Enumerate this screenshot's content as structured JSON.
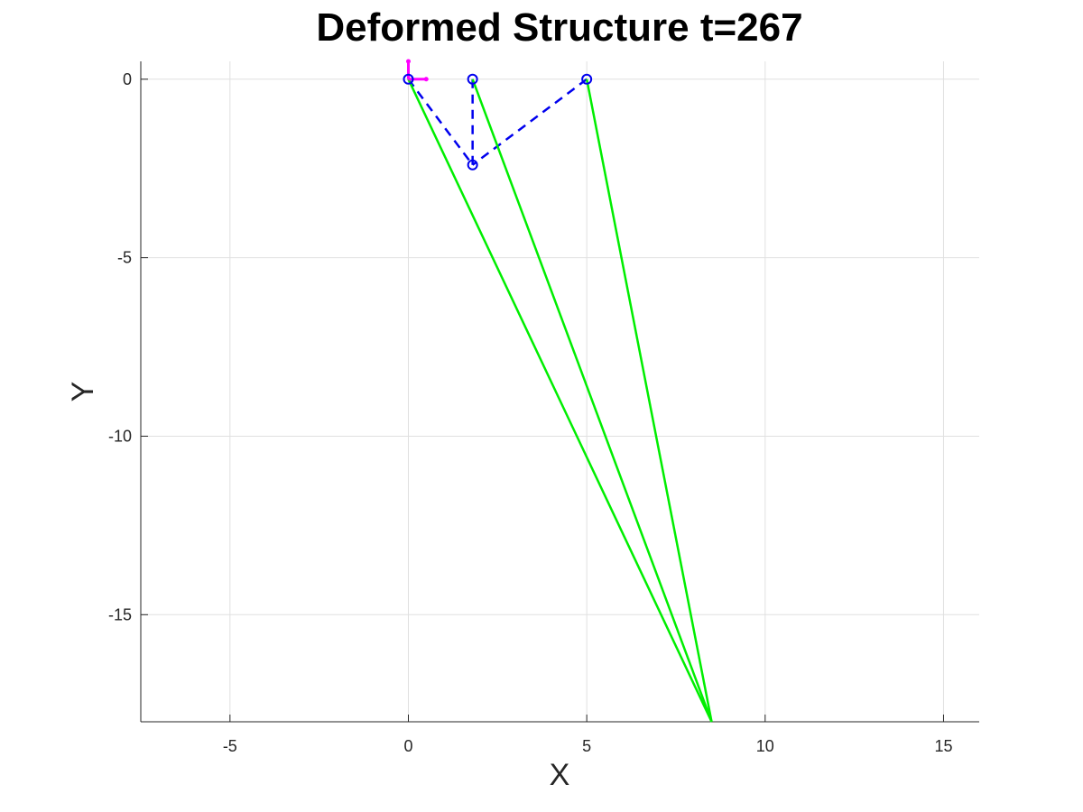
{
  "chart_data": {
    "type": "line",
    "title": "Deformed Structure t=267",
    "xlabel": "X",
    "ylabel": "Y",
    "xlim": [
      -7.5,
      16
    ],
    "ylim": [
      -18,
      0.5
    ],
    "xticks": [
      -5,
      0,
      5,
      10,
      15
    ],
    "yticks": [
      0,
      -5,
      -10,
      -15
    ],
    "xtick_labels": [
      "-5",
      "0",
      "5",
      "10",
      "15"
    ],
    "ytick_labels": [
      "0",
      "-5",
      "-10",
      "-15"
    ],
    "grid": true,
    "nodes": [
      {
        "x": 0,
        "y": 0
      },
      {
        "x": 1.8,
        "y": 0
      },
      {
        "x": 5,
        "y": 0
      },
      {
        "x": 1.8,
        "y": -2.4
      }
    ],
    "series": [
      {
        "style": "dashed",
        "color": "#0000ee",
        "segments": [
          [
            [
              0,
              0
            ],
            [
              1.8,
              -2.4
            ]
          ],
          [
            [
              1.8,
              0
            ],
            [
              1.8,
              -2.4
            ]
          ],
          [
            [
              5,
              0
            ],
            [
              1.8,
              -2.4
            ]
          ]
        ]
      },
      {
        "style": "solid",
        "color": "#00ee00",
        "segments": [
          [
            [
              0,
              0
            ],
            [
              8.5,
              -18
            ]
          ],
          [
            [
              1.8,
              0
            ],
            [
              8.5,
              -18
            ]
          ],
          [
            [
              5,
              0
            ],
            [
              8.5,
              -18
            ]
          ]
        ]
      }
    ],
    "support_marker": {
      "x": 0,
      "y": 0,
      "color": "#ff00ff",
      "arms": [
        [
          0,
          0.5
        ],
        [
          0.5,
          0
        ]
      ]
    }
  }
}
